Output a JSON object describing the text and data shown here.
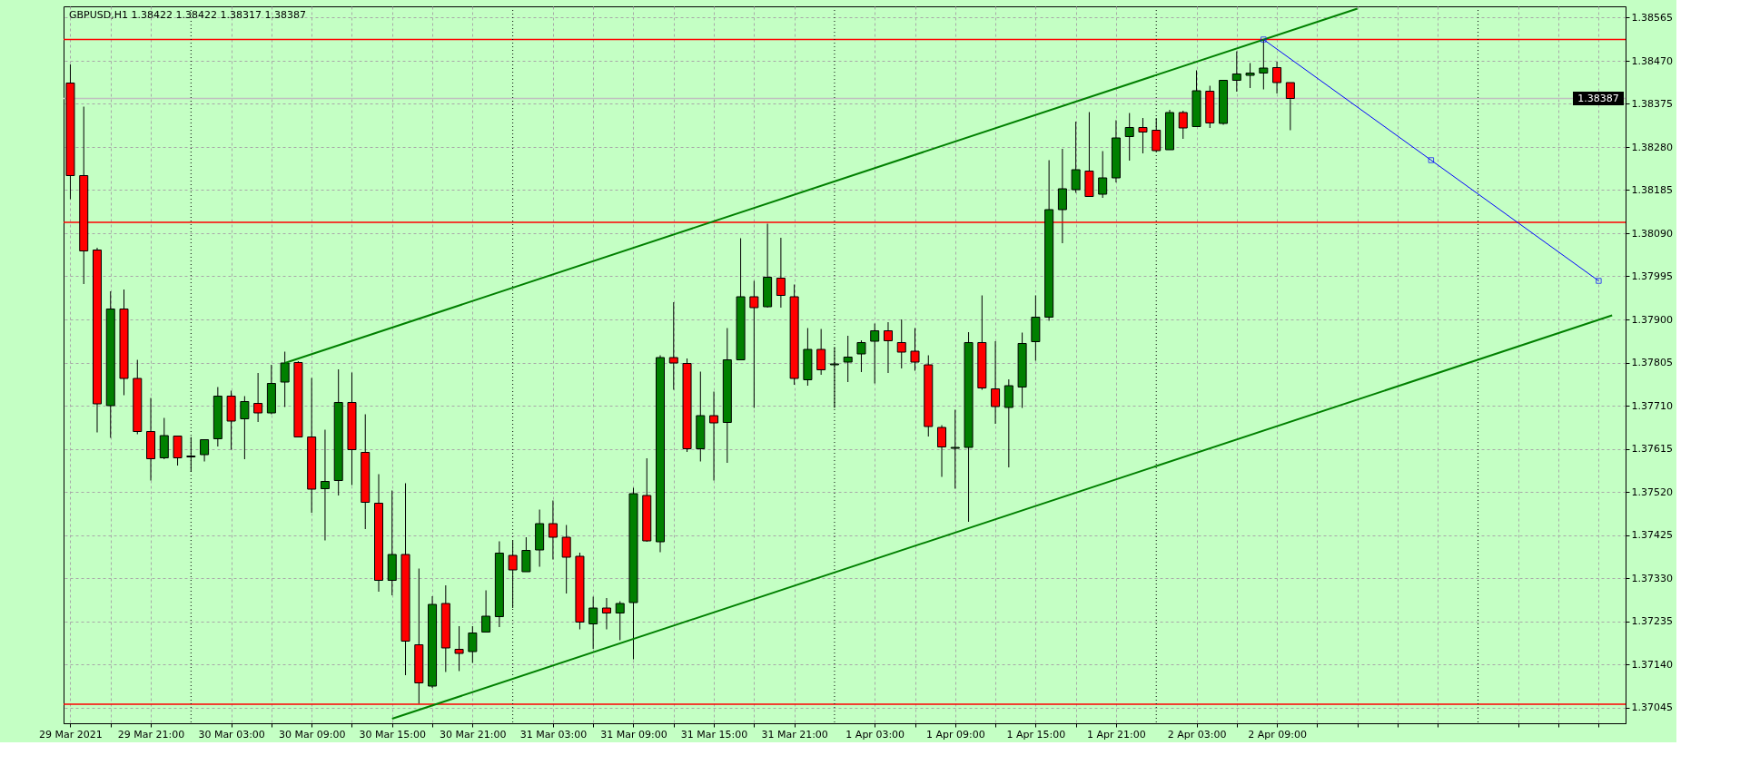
{
  "chart_data": {
    "type": "candlestick",
    "title": "GBPUSD,H1  1.38422 1.38422 1.38317 1.38387",
    "x": [
      "2021-03-29T15:00",
      "2021-03-29T16:00",
      "2021-03-29T17:00",
      "2021-03-29T18:00",
      "2021-03-29T19:00",
      "2021-03-29T20:00",
      "2021-03-29T21:00",
      "2021-03-29T22:00",
      "2021-03-29T23:00",
      "2021-03-30T00:00",
      "2021-03-30T01:00",
      "2021-03-30T02:00",
      "2021-03-30T03:00",
      "2021-03-30T04:00",
      "2021-03-30T05:00",
      "2021-03-30T06:00",
      "2021-03-30T07:00",
      "2021-03-30T08:00",
      "2021-03-30T09:00",
      "2021-03-30T10:00",
      "2021-03-30T11:00",
      "2021-03-30T12:00",
      "2021-03-30T13:00",
      "2021-03-30T14:00",
      "2021-03-30T15:00",
      "2021-03-30T16:00",
      "2021-03-30T17:00",
      "2021-03-30T18:00",
      "2021-03-30T19:00",
      "2021-03-30T20:00",
      "2021-03-30T21:00",
      "2021-03-30T22:00",
      "2021-03-30T23:00",
      "2021-03-31T00:00",
      "2021-03-31T01:00",
      "2021-03-31T02:00",
      "2021-03-31T03:00",
      "2021-03-31T04:00",
      "2021-03-31T05:00",
      "2021-03-31T06:00",
      "2021-03-31T07:00",
      "2021-03-31T08:00",
      "2021-03-31T09:00",
      "2021-03-31T10:00",
      "2021-03-31T11:00",
      "2021-03-31T12:00",
      "2021-03-31T13:00",
      "2021-03-31T14:00",
      "2021-03-31T15:00",
      "2021-03-31T16:00",
      "2021-03-31T17:00",
      "2021-03-31T18:00",
      "2021-03-31T19:00",
      "2021-03-31T20:00",
      "2021-03-31T21:00",
      "2021-03-31T22:00",
      "2021-03-31T23:00",
      "2021-04-01T00:00",
      "2021-04-01T01:00",
      "2021-04-01T02:00",
      "2021-04-01T03:00",
      "2021-04-01T04:00",
      "2021-04-01T05:00",
      "2021-04-01T06:00",
      "2021-04-01T07:00",
      "2021-04-01T08:00",
      "2021-04-01T09:00",
      "2021-04-01T10:00",
      "2021-04-01T11:00",
      "2021-04-01T12:00",
      "2021-04-01T13:00",
      "2021-04-01T14:00",
      "2021-04-01T15:00",
      "2021-04-01T16:00",
      "2021-04-01T17:00",
      "2021-04-01T18:00",
      "2021-04-01T19:00",
      "2021-04-01T20:00",
      "2021-04-01T21:00",
      "2021-04-01T22:00",
      "2021-04-01T23:00",
      "2021-04-02T00:00",
      "2021-04-02T01:00",
      "2021-04-02T02:00",
      "2021-04-02T03:00",
      "2021-04-02T04:00",
      "2021-04-02T05:00",
      "2021-04-02T06:00",
      "2021-04-02T07:00",
      "2021-04-02T08:00",
      "2021-04-02T09:00",
      "2021-04-02T10:00"
    ],
    "ohlc": [
      [
        1.38421,
        1.38462,
        1.38165,
        1.38217
      ],
      [
        1.38217,
        1.38369,
        1.37978,
        1.38051
      ],
      [
        1.38053,
        1.38058,
        1.37651,
        1.37714
      ],
      [
        1.3771,
        1.37962,
        1.37639,
        1.37923
      ],
      [
        1.37923,
        1.37966,
        1.37733,
        1.3777
      ],
      [
        1.3777,
        1.37811,
        1.37647,
        1.37653
      ],
      [
        1.37653,
        1.37727,
        1.37545,
        1.37593
      ],
      [
        1.37595,
        1.37683,
        1.37592,
        1.37644
      ],
      [
        1.37643,
        1.37643,
        1.37578,
        1.37595
      ],
      [
        1.37597,
        1.37641,
        1.37564,
        1.37599
      ],
      [
        1.37602,
        1.37635,
        1.37587,
        1.37635
      ],
      [
        1.37637,
        1.37751,
        1.3762,
        1.37731
      ],
      [
        1.37731,
        1.37743,
        1.37613,
        1.37676
      ],
      [
        1.37681,
        1.37731,
        1.37592,
        1.37719
      ],
      [
        1.37715,
        1.37782,
        1.37674,
        1.37694
      ],
      [
        1.37694,
        1.378,
        1.37691,
        1.37759
      ],
      [
        1.37762,
        1.37829,
        1.37707,
        1.37804
      ],
      [
        1.37805,
        1.37808,
        1.37641,
        1.37641
      ],
      [
        1.37641,
        1.37771,
        1.37474,
        1.37526
      ],
      [
        1.37527,
        1.37657,
        1.37413,
        1.37543
      ],
      [
        1.37545,
        1.3779,
        1.37512,
        1.37717
      ],
      [
        1.37717,
        1.37783,
        1.37535,
        1.37613
      ],
      [
        1.37607,
        1.37691,
        1.37438,
        1.37497
      ],
      [
        1.37495,
        1.37559,
        1.373,
        1.37325
      ],
      [
        1.37325,
        1.37523,
        1.37292,
        1.37382
      ],
      [
        1.37382,
        1.37539,
        1.37116,
        1.37191
      ],
      [
        1.37183,
        1.37351,
        1.37053,
        1.37099
      ],
      [
        1.37092,
        1.3729,
        1.37088,
        1.37272
      ],
      [
        1.37274,
        1.37314,
        1.37123,
        1.37176
      ],
      [
        1.37173,
        1.37224,
        1.37125,
        1.37164
      ],
      [
        1.37168,
        1.37224,
        1.37143,
        1.37209
      ],
      [
        1.37211,
        1.37303,
        1.37211,
        1.37246
      ],
      [
        1.37245,
        1.37411,
        1.37222,
        1.37385
      ],
      [
        1.3738,
        1.37413,
        1.37264,
        1.37348
      ],
      [
        1.37344,
        1.3742,
        1.37344,
        1.37391
      ],
      [
        1.37392,
        1.37481,
        1.37355,
        1.3745
      ],
      [
        1.3745,
        1.37501,
        1.37371,
        1.3742
      ],
      [
        1.3742,
        1.37447,
        1.37296,
        1.37376
      ],
      [
        1.37378,
        1.37386,
        1.37217,
        1.37233
      ],
      [
        1.37229,
        1.37289,
        1.37174,
        1.37264
      ],
      [
        1.37264,
        1.37286,
        1.37217,
        1.37253
      ],
      [
        1.37253,
        1.37279,
        1.37193,
        1.37274
      ],
      [
        1.37276,
        1.37529,
        1.37151,
        1.37516
      ],
      [
        1.37512,
        1.37594,
        1.3741,
        1.37412
      ],
      [
        1.3741,
        1.37821,
        1.37387,
        1.37816
      ],
      [
        1.37816,
        1.37938,
        1.37745,
        1.37804
      ],
      [
        1.37803,
        1.37814,
        1.37608,
        1.37615
      ],
      [
        1.37615,
        1.37785,
        1.37587,
        1.37688
      ],
      [
        1.37688,
        1.37741,
        1.37545,
        1.37672
      ],
      [
        1.37673,
        1.37881,
        1.37584,
        1.37811
      ],
      [
        1.37811,
        1.38079,
        1.37811,
        1.3795
      ],
      [
        1.3795,
        1.37985,
        1.37705,
        1.37926
      ],
      [
        1.37928,
        1.38111,
        1.37926,
        1.37993
      ],
      [
        1.37991,
        1.3808,
        1.37926,
        1.37953
      ],
      [
        1.3795,
        1.37977,
        1.37756,
        1.3777
      ],
      [
        1.37767,
        1.37881,
        1.37754,
        1.37834
      ],
      [
        1.37834,
        1.37879,
        1.37778,
        1.37789
      ],
      [
        1.378,
        1.37839,
        1.37705,
        1.37802
      ],
      [
        1.37806,
        1.37864,
        1.37762,
        1.37817
      ],
      [
        1.37824,
        1.37854,
        1.37784,
        1.37849
      ],
      [
        1.37852,
        1.37891,
        1.37759,
        1.37875
      ],
      [
        1.37875,
        1.37894,
        1.37782,
        1.37853
      ],
      [
        1.37849,
        1.379,
        1.37792,
        1.37828
      ],
      [
        1.3783,
        1.37881,
        1.37787,
        1.37806
      ],
      [
        1.378,
        1.37821,
        1.37642,
        1.37664
      ],
      [
        1.37662,
        1.37667,
        1.37553,
        1.37619
      ],
      [
        1.37616,
        1.37701,
        1.37527,
        1.37618
      ],
      [
        1.37618,
        1.37872,
        1.37454,
        1.37849
      ],
      [
        1.37849,
        1.37953,
        1.37745,
        1.37749
      ],
      [
        1.37747,
        1.37852,
        1.3767,
        1.37708
      ],
      [
        1.37706,
        1.37768,
        1.37574,
        1.37754
      ],
      [
        1.37751,
        1.37871,
        1.37705,
        1.37847
      ],
      [
        1.37851,
        1.37953,
        1.37809,
        1.37905
      ],
      [
        1.37905,
        1.38251,
        1.37897,
        1.38142
      ],
      [
        1.38142,
        1.38276,
        1.38068,
        1.38188
      ],
      [
        1.38186,
        1.38336,
        1.38179,
        1.3823
      ],
      [
        1.38227,
        1.38357,
        1.38171,
        1.38171
      ],
      [
        1.38176,
        1.38271,
        1.38168,
        1.38212
      ],
      [
        1.38212,
        1.38339,
        1.38202,
        1.383
      ],
      [
        1.38303,
        1.38355,
        1.3825,
        1.38323
      ],
      [
        1.38323,
        1.38344,
        1.38266,
        1.38313
      ],
      [
        1.38317,
        1.38344,
        1.3827,
        1.38272
      ],
      [
        1.38274,
        1.38362,
        1.38274,
        1.38356
      ],
      [
        1.38356,
        1.3836,
        1.38298,
        1.38322
      ],
      [
        1.38325,
        1.38449,
        1.38325,
        1.38404
      ],
      [
        1.38403,
        1.38415,
        1.38322,
        1.38333
      ],
      [
        1.38332,
        1.38427,
        1.38329,
        1.38427
      ],
      [
        1.38427,
        1.38491,
        1.38402,
        1.38441
      ],
      [
        1.38438,
        1.38465,
        1.3841,
        1.38443
      ],
      [
        1.38443,
        1.38517,
        1.38407,
        1.38454
      ],
      [
        1.38455,
        1.38468,
        1.38398,
        1.38422
      ],
      [
        1.38422,
        1.38422,
        1.38317,
        1.38387
      ]
    ],
    "colors": [
      "#ff0000",
      "#ff0000",
      "#ff0000",
      "#008000",
      "#ff0000",
      "#ff0000",
      "#ff0000",
      "#008000",
      "#ff0000",
      "#008000",
      "#008000",
      "#008000",
      "#ff0000",
      "#008000",
      "#ff0000",
      "#008000",
      "#008000",
      "#ff0000",
      "#ff0000",
      "#008000",
      "#008000",
      "#ff0000",
      "#ff0000",
      "#ff0000",
      "#008000",
      "#ff0000",
      "#ff0000",
      "#008000",
      "#ff0000",
      "#ff0000",
      "#008000",
      "#008000",
      "#008000",
      "#ff0000",
      "#008000",
      "#008000",
      "#ff0000",
      "#ff0000",
      "#ff0000",
      "#008000",
      "#ff0000",
      "#008000",
      "#008000",
      "#ff0000",
      "#008000",
      "#ff0000",
      "#ff0000",
      "#008000",
      "#ff0000",
      "#008000",
      "#008000",
      "#ff0000",
      "#008000",
      "#ff0000",
      "#ff0000",
      "#008000",
      "#ff0000",
      "#008000",
      "#008000",
      "#008000",
      "#008000",
      "#ff0000",
      "#ff0000",
      "#ff0000",
      "#ff0000",
      "#ff0000",
      "#008000",
      "#008000",
      "#ff0000",
      "#ff0000",
      "#008000",
      "#008000",
      "#008000",
      "#008000",
      "#008000",
      "#008000",
      "#ff0000",
      "#008000",
      "#008000",
      "#008000",
      "#ff0000",
      "#ff0000",
      "#008000",
      "#ff0000",
      "#008000",
      "#ff0000",
      "#008000",
      "#008000",
      "#008000",
      "#008000",
      "#ff0000",
      "#ff0000"
    ],
    "series": [
      {
        "type": "line",
        "color": "#008000",
        "x": [
          "2021-03-30T07:00",
          "2021-04-02T15:00"
        ],
        "values": [
          1.37804,
          1.38585
        ]
      },
      {
        "type": "line",
        "color": "#008000",
        "x": [
          "2021-03-30T15:00",
          "2021-04-03T10:00"
        ],
        "values": [
          1.3702,
          1.37909
        ]
      },
      {
        "type": "line",
        "color": "#0000ff",
        "marker": "square",
        "x": [
          "2021-04-02T08:00",
          "2021-04-02T20:30",
          "2021-04-03T09:00"
        ],
        "values": [
          1.38517,
          1.38251,
          1.37985
        ]
      }
    ],
    "xlim": [
      "2021-03-29T14:50",
      "2021-04-03T10:40"
    ],
    "xticks": [
      {
        "value": "2021-03-29T15:00",
        "label": "29 Mar 2021"
      },
      {
        "value": "2021-03-29T18:00",
        "label": null
      },
      {
        "value": "2021-03-29T21:00",
        "label": "29 Mar 21:00"
      },
      {
        "value": "2021-03-30T03:00",
        "label": "30 Mar 03:00"
      },
      {
        "value": "2021-03-30T06:00",
        "label": null
      },
      {
        "value": "2021-03-30T09:00",
        "label": "30 Mar 09:00"
      },
      {
        "value": "2021-03-30T12:00",
        "label": null
      },
      {
        "value": "2021-03-30T15:00",
        "label": "30 Mar 15:00"
      },
      {
        "value": "2021-03-30T18:00",
        "label": null
      },
      {
        "value": "2021-03-30T21:00",
        "label": "30 Mar 21:00"
      },
      {
        "value": "2021-03-31T03:00",
        "label": "31 Mar 03:00"
      },
      {
        "value": "2021-03-31T06:00",
        "label": null
      },
      {
        "value": "2021-03-31T09:00",
        "label": "31 Mar 09:00"
      },
      {
        "value": "2021-03-31T12:00",
        "label": null
      },
      {
        "value": "2021-03-31T15:00",
        "label": "31 Mar 15:00"
      },
      {
        "value": "2021-03-31T18:00",
        "label": null
      },
      {
        "value": "2021-03-31T21:00",
        "label": "31 Mar 21:00"
      },
      {
        "value": "2021-04-01T03:00",
        "label": "1 Apr 03:00"
      },
      {
        "value": "2021-04-01T06:00",
        "label": null
      },
      {
        "value": "2021-04-01T09:00",
        "label": "1 Apr 09:00"
      },
      {
        "value": "2021-04-01T12:00",
        "label": null
      },
      {
        "value": "2021-04-01T15:00",
        "label": "1 Apr 15:00"
      },
      {
        "value": "2021-04-01T18:00",
        "label": null
      },
      {
        "value": "2021-04-01T21:00",
        "label": "1 Apr 21:00"
      },
      {
        "value": "2021-04-02T03:00",
        "label": "2 Apr 03:00"
      },
      {
        "value": "2021-04-02T06:00",
        "label": null
      },
      {
        "value": "2021-04-02T09:00",
        "label": "2 Apr 09:00"
      },
      {
        "value": "2021-04-02T12:00",
        "label": null
      },
      {
        "value": "2021-04-02T15:00",
        "label": null
      },
      {
        "value": "2021-04-02T18:00",
        "label": null
      },
      {
        "value": "2021-04-02T21:00",
        "label": null
      },
      {
        "value": "2021-04-03T03:00",
        "label": null
      },
      {
        "value": "2021-04-03T06:00",
        "label": null
      },
      {
        "value": "2021-04-03T09:00",
        "label": null
      }
    ],
    "ylim": [
      1.3701,
      1.3859
    ],
    "yticks": [
      {
        "value": 1.37045,
        "label": "1.37045"
      },
      {
        "value": 1.3714,
        "label": "1.37140"
      },
      {
        "value": 1.37235,
        "label": "1.37235"
      },
      {
        "value": 1.3733,
        "label": "1.37330"
      },
      {
        "value": 1.37425,
        "label": "1.37425"
      },
      {
        "value": 1.3752,
        "label": "1.37520"
      },
      {
        "value": 1.37615,
        "label": "1.37615"
      },
      {
        "value": 1.3771,
        "label": "1.37710"
      },
      {
        "value": 1.37805,
        "label": "1.37805"
      },
      {
        "value": 1.379,
        "label": "1.37900"
      },
      {
        "value": 1.37995,
        "label": "1.37995"
      },
      {
        "value": 1.3809,
        "label": "1.38090"
      },
      {
        "value": 1.38185,
        "label": "1.38185"
      },
      {
        "value": 1.3828,
        "label": "1.38280"
      },
      {
        "value": 1.38375,
        "label": "1.38375"
      },
      {
        "value": 1.3847,
        "label": "1.38470"
      },
      {
        "value": 1.38565,
        "label": "1.38565"
      }
    ],
    "ref_lines": [
      {
        "axis": "y",
        "value": 1.38517,
        "color": "#ff0000"
      },
      {
        "axis": "y",
        "value": 1.38114,
        "color": "#ff0000"
      },
      {
        "axis": "y",
        "value": 1.37052,
        "color": "#ff0000"
      },
      {
        "axis": "y",
        "value": 1.38387,
        "label": "1.38387",
        "color": "#c0c0c0"
      },
      {
        "axis": "x",
        "value": "2021-03-30T00:00",
        "color": "#000000",
        "line_style": "dotted"
      },
      {
        "axis": "x",
        "value": "2021-03-31T00:00",
        "color": "#000000",
        "line_style": "dotted"
      },
      {
        "axis": "x",
        "value": "2021-04-01T00:00",
        "color": "#000000",
        "line_style": "dotted"
      },
      {
        "axis": "x",
        "value": "2021-04-02T00:00",
        "color": "#000000",
        "line_style": "dotted"
      },
      {
        "axis": "x",
        "value": "2021-04-03T00:00",
        "color": "#000000",
        "line_style": "dotted"
      }
    ],
    "grid": true
  }
}
